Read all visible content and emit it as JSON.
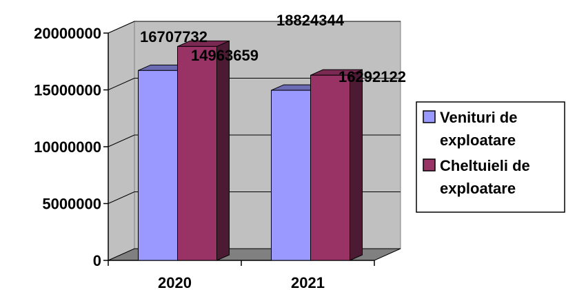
{
  "chart_data": {
    "type": "bar",
    "three_d": true,
    "categories": [
      "2020",
      "2021"
    ],
    "series": [
      {
        "name": "Venituri de exploatare",
        "legend_lines": [
          "Venituri de",
          "exploatare"
        ],
        "values": [
          16707732,
          14963659
        ],
        "color": "#9999FF"
      },
      {
        "name": "Cheltuieli de exploatare",
        "legend_lines": [
          "Cheltuieli de",
          "exploatare"
        ],
        "values": [
          18824344,
          16292122
        ],
        "color": "#993366"
      }
    ],
    "data_labels": [
      [
        "16707732",
        "18824344"
      ],
      [
        "14963659",
        "16292122"
      ]
    ],
    "yticks": [
      0,
      5000000,
      10000000,
      15000000,
      20000000
    ],
    "ytick_labels": [
      "0",
      "5000000",
      "10000000",
      "15000000",
      "20000000"
    ],
    "ylim": [
      0,
      20000000
    ],
    "grid": true,
    "legend_position": "right",
    "wall_color": "#C0C0C0",
    "floor_color": "#808080"
  }
}
